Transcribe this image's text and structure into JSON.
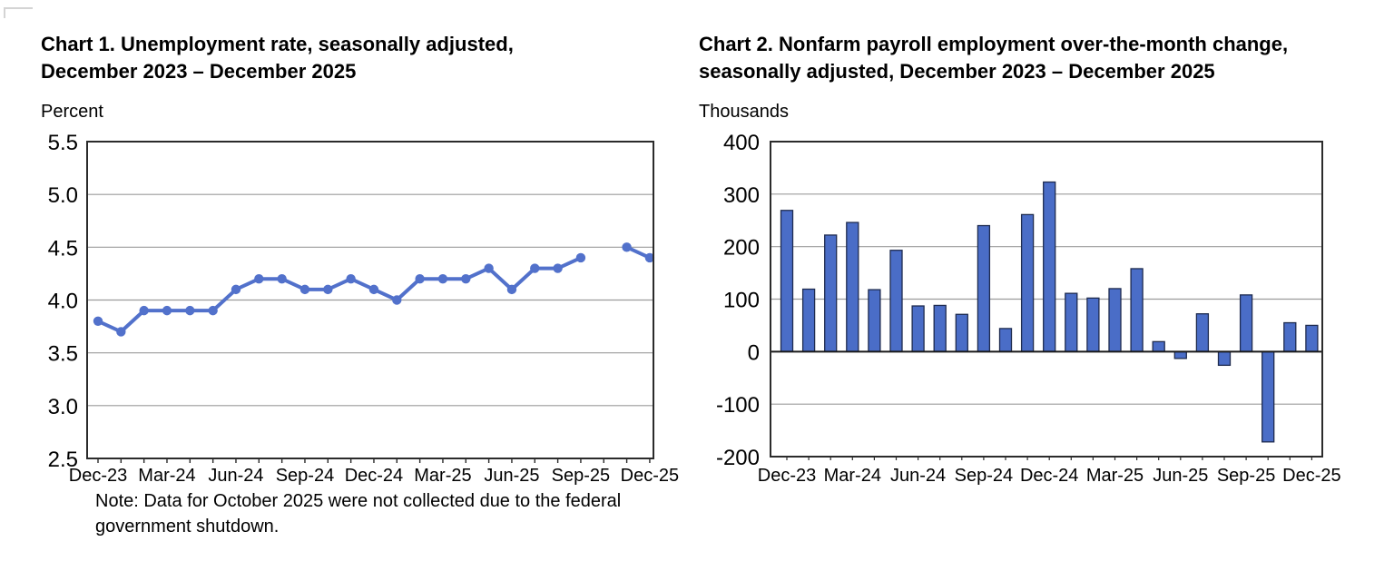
{
  "page": {
    "background": "#ffffff"
  },
  "colors": {
    "line": "#5271cb",
    "marker": "#5271cb",
    "bar_fill": "#4a6dc7",
    "bar_stroke": "#1e2b4f",
    "grid": "#9b9b9b",
    "axis": "#2b2b2b",
    "zero_line": "#1a1a1a",
    "text": "#000000"
  },
  "chart1": {
    "title_line1": "Chart 1. Unemployment rate, seasonally adjusted,",
    "title_line2": "December 2023 – December 2025",
    "unit_label": "Percent",
    "note_line1": "Note: Data for October 2025 were not collected due to the federal",
    "note_line2": "government shutdown."
  },
  "chart2": {
    "title_line1": "Chart 2. Nonfarm payroll employment over-the-month change,",
    "title_line2": "seasonally adjusted, December 2023 – December 2025",
    "unit_label": "Thousands"
  },
  "chart_data": [
    {
      "id": "unemployment-rate",
      "type": "line",
      "title": "Chart 1. Unemployment rate, seasonally adjusted, December 2023 – December 2025",
      "ylabel": "Percent",
      "xlabel": "",
      "ylim": [
        2.5,
        5.5
      ],
      "yticks": [
        5.5,
        5.0,
        4.5,
        4.0,
        3.5,
        3.0,
        2.5
      ],
      "xtick_labels": [
        "Dec-23",
        "Mar-24",
        "Jun-24",
        "Sep-24",
        "Dec-24",
        "Mar-25",
        "Jun-25",
        "Sep-25",
        "Dec-25"
      ],
      "grid": true,
      "legend": "none",
      "categories": [
        "Dec-23",
        "Jan-24",
        "Feb-24",
        "Mar-24",
        "Apr-24",
        "May-24",
        "Jun-24",
        "Jul-24",
        "Aug-24",
        "Sep-24",
        "Oct-24",
        "Nov-24",
        "Dec-24",
        "Jan-25",
        "Feb-25",
        "Mar-25",
        "Apr-25",
        "May-25",
        "Jun-25",
        "Jul-25",
        "Aug-25",
        "Sep-25",
        "Oct-25",
        "Nov-25",
        "Dec-25"
      ],
      "values": [
        3.8,
        3.7,
        3.9,
        3.9,
        3.9,
        3.9,
        4.1,
        4.2,
        4.2,
        4.1,
        4.1,
        4.2,
        4.1,
        4.0,
        4.2,
        4.2,
        4.2,
        4.3,
        4.1,
        4.3,
        4.3,
        4.4,
        null,
        4.5,
        4.4
      ],
      "missing_months": [
        "Oct-25"
      ],
      "note": "Note: Data for October 2025 were not collected due to the federal government shutdown."
    },
    {
      "id": "nonfarm-payroll-change",
      "type": "bar",
      "title": "Chart 2. Nonfarm payroll employment over-the-month change, seasonally adjusted, December 2023 – December 2025",
      "ylabel": "Thousands",
      "xlabel": "",
      "ylim": [
        -200,
        400
      ],
      "yticks": [
        400,
        300,
        200,
        100,
        0,
        -100,
        -200
      ],
      "xtick_labels": [
        "Dec-23",
        "Mar-24",
        "Jun-24",
        "Sep-24",
        "Dec-24",
        "Mar-25",
        "Jun-25",
        "Sep-25",
        "Dec-25"
      ],
      "grid": true,
      "legend": "none",
      "categories": [
        "Dec-23",
        "Jan-24",
        "Feb-24",
        "Mar-24",
        "Apr-24",
        "May-24",
        "Jun-24",
        "Jul-24",
        "Aug-24",
        "Sep-24",
        "Oct-24",
        "Nov-24",
        "Dec-24",
        "Jan-25",
        "Feb-25",
        "Mar-25",
        "Apr-25",
        "May-25",
        "Jun-25",
        "Jul-25",
        "Aug-25",
        "Sep-25",
        "Oct-25",
        "Nov-25",
        "Dec-25"
      ],
      "values": [
        269,
        119,
        222,
        246,
        118,
        193,
        87,
        88,
        71,
        240,
        44,
        261,
        323,
        111,
        102,
        120,
        158,
        19,
        -13,
        72,
        -26,
        108,
        -172,
        55,
        50
      ]
    }
  ]
}
